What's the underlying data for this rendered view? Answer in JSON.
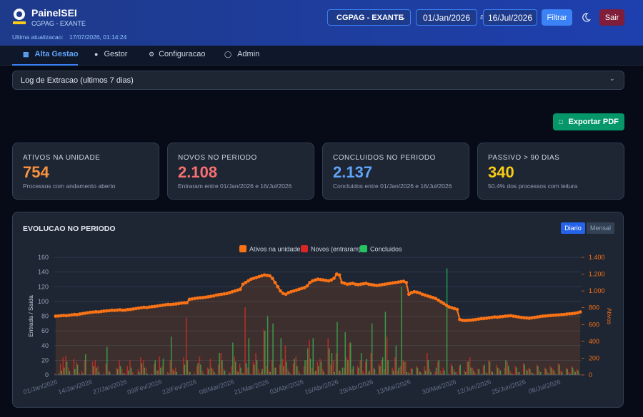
{
  "header": {
    "title": "PainelSEI",
    "unit": "CGPAG - EXANTE",
    "updated_label": "Ultima atualizacao:",
    "updated_value": "17/07/2026, 01:14:24",
    "select": "CGPAG - EXANTE",
    "date_from": "01/Jan/2026",
    "date_sep": "a",
    "date_to": "16/Jul/2026",
    "filter": "Filtrar",
    "logout": "Sair"
  },
  "nav": [
    "Alta Gestao",
    "Gestor",
    "Configuracao",
    "Admin"
  ],
  "log": "Log de Extracao (ultimos 7 dias)",
  "export": "Exportar PDF",
  "cards": [
    {
      "label": "ATIVOS NA UNIDADE",
      "value": "754",
      "sub": "Processos com andamento aberto"
    },
    {
      "label": "NOVOS NO PERIODO",
      "value": "2.108",
      "sub": "Entraram entre 01/Jan/2026 e 16/Jul/2026"
    },
    {
      "label": "CONCLUIDOS NO PERIODO",
      "value": "2.137",
      "sub": "Concluidos entre 01/Jan/2026 e 16/Jul/2026"
    },
    {
      "label": "PASSIVO > 90 DIAS",
      "value": "340",
      "sub": "50.4% dos processos com leitura"
    }
  ],
  "chart_panel": {
    "title": "EVOLUCAO NO PERIODO",
    "toggles": [
      "Diario",
      "Mensal"
    ]
  },
  "chart_data": {
    "type": "bar-line",
    "legend": "top",
    "grid": true,
    "ylabel": "Entrada / Saida",
    "y2label": "Ativos",
    "ylim": [
      0,
      160
    ],
    "yticks": [
      0,
      20,
      40,
      60,
      80,
      100,
      120,
      140,
      160
    ],
    "y2lim": [
      0,
      1400
    ],
    "y2ticks": [
      0,
      200,
      400,
      600,
      800,
      {
        "value": 1000,
        "label": "1.000"
      },
      {
        "value": 1200,
        "label": "1.200"
      },
      {
        "value": 1400,
        "label": "1.400"
      }
    ],
    "categories": [
      "01/Jan/2026",
      null,
      null,
      null,
      null,
      null,
      null,
      null,
      null,
      null,
      null,
      null,
      null,
      "14/Jan/2026",
      null,
      null,
      null,
      null,
      null,
      null,
      null,
      null,
      null,
      null,
      null,
      null,
      "27/Jan/2026",
      null,
      null,
      null,
      null,
      null,
      null,
      null,
      null,
      null,
      null,
      null,
      null,
      "09/Fev/2026",
      null,
      null,
      null,
      null,
      null,
      null,
      null,
      null,
      null,
      null,
      null,
      null,
      "22/Fev/2026",
      null,
      null,
      null,
      null,
      null,
      null,
      null,
      null,
      null,
      null,
      null,
      null,
      null,
      "08/Mar/2026",
      null,
      null,
      null,
      null,
      null,
      null,
      null,
      null,
      null,
      null,
      null,
      null,
      "21/Mar/2026",
      null,
      null,
      null,
      null,
      null,
      null,
      null,
      null,
      null,
      null,
      null,
      null,
      "03/Abr/2026",
      null,
      null,
      null,
      null,
      null,
      null,
      null,
      null,
      null,
      null,
      null,
      null,
      "16/Abr/2026",
      null,
      null,
      null,
      null,
      null,
      null,
      null,
      null,
      null,
      null,
      null,
      null,
      "29/Abr/2026",
      null,
      null,
      null,
      null,
      null,
      null,
      null,
      null,
      null,
      null,
      null,
      null,
      null,
      "13/Mai/2026",
      null,
      null,
      null,
      null,
      null,
      null,
      null,
      null,
      null,
      null,
      null,
      null,
      null,
      null,
      null,
      null,
      "30/Mai/2026",
      null,
      null,
      null,
      null,
      null,
      null,
      null,
      null,
      null,
      null,
      null,
      null,
      "12/Jun/2026",
      null,
      null,
      null,
      null,
      null,
      null,
      null,
      null,
      null,
      null,
      null,
      null,
      "25/Jun/2026",
      null,
      null,
      null,
      null,
      null,
      null,
      null,
      null,
      null,
      null,
      null,
      null,
      "08/Jul/2026",
      null,
      null,
      null,
      null,
      null,
      null,
      null,
      null
    ],
    "series": [
      {
        "name": "Ativos na unidade",
        "color": "#f97316",
        "axis": "y2",
        "kind": "line",
        "values": [
          700,
          702,
          705,
          708,
          706,
          710,
          715,
          720,
          718,
          725,
          730,
          735,
          740,
          745,
          748,
          752,
          750,
          755,
          760,
          762,
          765,
          770,
          768,
          772,
          775,
          770,
          772,
          778,
          780,
          785,
          790,
          795,
          800,
          805,
          802,
          808,
          812,
          815,
          820,
          825,
          830,
          835,
          840,
          838,
          842,
          845,
          850,
          855,
          858,
          860,
          900,
          905,
          910,
          915,
          918,
          920,
          925,
          930,
          935,
          940,
          950,
          955,
          960,
          965,
          970,
          980,
          990,
          1000,
          1010,
          1020,
          1080,
          1100,
          1120,
          1140,
          1150,
          1160,
          1170,
          1180,
          1190,
          1185,
          1180,
          1150,
          1100,
          1050,
          1000,
          970,
          960,
          980,
          990,
          1000,
          1010,
          1020,
          1030,
          1040,
          1060,
          1100,
          1120,
          1130,
          1140,
          1135,
          1130,
          1125,
          1120,
          1130,
          1150,
          1200,
          1190,
          1100,
          1090,
          1080,
          1085,
          1090,
          1080,
          1075,
          1080,
          1085,
          1090,
          1080,
          1075,
          1070,
          1065,
          1070,
          1075,
          1080,
          1085,
          1090,
          1095,
          1100,
          1105,
          1110,
          1115,
          1100,
          960,
          980,
          990,
          985,
          975,
          960,
          950,
          940,
          930,
          920,
          910,
          890,
          870,
          850,
          830,
          810,
          800,
          790,
          780,
          660,
          650,
          648,
          650,
          652,
          655,
          660,
          665,
          670,
          672,
          675,
          680,
          685,
          690,
          688,
          692,
          695,
          700,
          702,
          705,
          700,
          695,
          690,
          685,
          680,
          678,
          675,
          680,
          685,
          690,
          695,
          700,
          702,
          705,
          708,
          710,
          712,
          715,
          718,
          720,
          725,
          728,
          730,
          735,
          740,
          750
        ]
      },
      {
        "name": "Novos (entraram)",
        "color": "#dc2626",
        "kind": "bar",
        "values": [
          2,
          0,
          15,
          24,
          26,
          10,
          0,
          22,
          18,
          3,
          5,
          20,
          0,
          1,
          18,
          20,
          12,
          0,
          2,
          15,
          6,
          0,
          0,
          10,
          20,
          8,
          3,
          12,
          20,
          4,
          0,
          8,
          24,
          20,
          10,
          0,
          2,
          15,
          6,
          25,
          12,
          0,
          4,
          20,
          8,
          10,
          0,
          1,
          24,
          78,
          5,
          0,
          3,
          12,
          25,
          6,
          0,
          10,
          22,
          8,
          2,
          14,
          30,
          8,
          0,
          4,
          12,
          25,
          6,
          15,
          3,
          92,
          10,
          2,
          18,
          30,
          8,
          4,
          62,
          12,
          6,
          20,
          10,
          0,
          14,
          22,
          40,
          8,
          2,
          15,
          25,
          6,
          0,
          12,
          20,
          48,
          10,
          4,
          18,
          22,
          8,
          0,
          50,
          14,
          20,
          30,
          6,
          2,
          10,
          24,
          44,
          8,
          0,
          12,
          20,
          6,
          18,
          4,
          30,
          10,
          2,
          15,
          20,
          8,
          52,
          0,
          10,
          24,
          6,
          12,
          20,
          18,
          4,
          10,
          0,
          12,
          6,
          3,
          12,
          30,
          8,
          0,
          4,
          18,
          6,
          10,
          0,
          2,
          15,
          8,
          4,
          12,
          0,
          6,
          18,
          24,
          10,
          3,
          8,
          0,
          12,
          4,
          20,
          6,
          2,
          14,
          8,
          0,
          10,
          18,
          6,
          2,
          12,
          4,
          0,
          16,
          8,
          10,
          4,
          2,
          14,
          6,
          0,
          10,
          4,
          12,
          8,
          2,
          16,
          6,
          0,
          10,
          4,
          12,
          6,
          8,
          2
        ]
      },
      {
        "name": "Concluidos",
        "color": "#22c55e",
        "kind": "bar",
        "values": [
          0,
          2,
          6,
          10,
          18,
          5,
          0,
          8,
          14,
          0,
          2,
          28,
          0,
          0,
          12,
          10,
          4,
          0,
          0,
          38,
          4,
          0,
          0,
          8,
          12,
          2,
          0,
          6,
          10,
          0,
          0,
          4,
          16,
          10,
          2,
          0,
          0,
          20,
          6,
          10,
          22,
          0,
          2,
          52,
          6,
          4,
          0,
          0,
          14,
          20,
          4,
          0,
          0,
          16,
          14,
          2,
          0,
          8,
          10,
          4,
          0,
          30,
          20,
          6,
          0,
          2,
          44,
          18,
          4,
          10,
          2,
          16,
          50,
          0,
          14,
          20,
          2,
          8,
          60,
          80,
          4,
          70,
          10,
          0,
          50,
          12,
          18,
          4,
          0,
          22,
          12,
          2,
          0,
          20,
          36,
          22,
          50,
          6,
          12,
          18,
          4,
          0,
          36,
          30,
          4,
          72,
          6,
          10,
          58,
          20,
          44,
          12,
          0,
          10,
          30,
          2,
          22,
          6,
          70,
          8,
          0,
          12,
          24,
          86,
          20,
          0,
          6,
          40,
          10,
          120,
          18,
          4,
          2,
          8,
          0,
          10,
          4,
          0,
          6,
          20,
          4,
          0,
          10,
          20,
          2,
          6,
          145,
          0,
          12,
          4,
          0,
          14,
          0,
          4,
          18,
          10,
          6,
          0,
          8,
          2,
          14,
          2,
          18,
          4,
          0,
          10,
          6,
          0,
          20,
          12,
          2,
          0,
          10,
          4,
          0,
          14,
          6,
          8,
          2,
          0,
          12,
          4,
          0,
          8,
          2,
          10,
          6,
          0,
          14,
          4,
          0,
          8,
          2,
          10,
          4,
          6,
          0
        ]
      }
    ]
  }
}
